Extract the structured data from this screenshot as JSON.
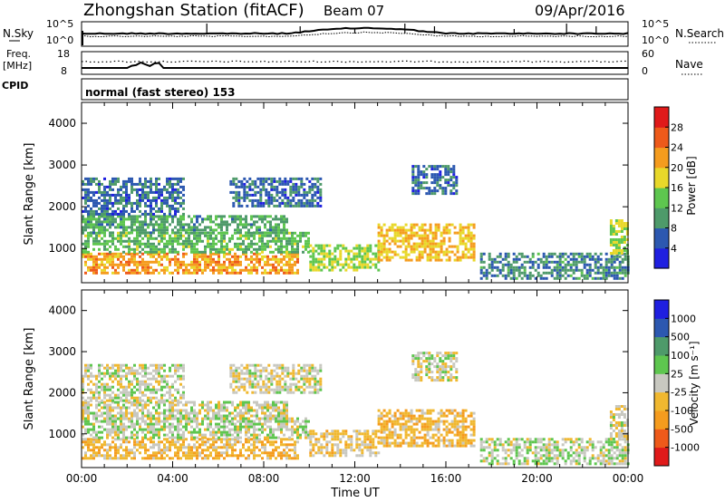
{
  "header": {
    "station": "Zhongshan Station (fitACF)",
    "beam": "Beam 07",
    "date": "09/Apr/2016"
  },
  "noise_panel": {
    "left_label": "N.Sky",
    "right_label": "N.Search",
    "left_ticks": [
      "10^5",
      "10^0"
    ],
    "right_ticks": [
      "10^5",
      "10^0"
    ]
  },
  "freq_panel": {
    "left_label_line1": "Freq.",
    "left_label_line2": "[MHz]",
    "right_label": "Nave",
    "left_ticks": [
      "18",
      "8"
    ],
    "right_ticks": [
      "60",
      "0"
    ]
  },
  "cpid": {
    "label": "CPID",
    "text": "normal (fast stereo) 153"
  },
  "colors": {
    "power_scale": [
      "#1f1fe0",
      "#2c58b0",
      "#4e9a6a",
      "#5ec64f",
      "#e8d82a",
      "#f59c1e",
      "#ee5a1a",
      "#e01a1a"
    ],
    "velocity_scale": [
      "#e01a1a",
      "#ee5a1a",
      "#f59c1e",
      "#f0b830",
      "#c8c8c0",
      "#5ec64f",
      "#4e9a6a",
      "#2c58b0",
      "#1f1fe0"
    ]
  },
  "chart_data": [
    {
      "type": "heatmap",
      "name": "power",
      "ylabel": "Slant Range [km]",
      "xlabel": "",
      "ylim": [
        180,
        4500
      ],
      "xlim_hours": [
        0,
        24
      ],
      "y_ticks": [
        "1000",
        "2000",
        "3000",
        "4000"
      ],
      "colorbar": {
        "label": "Power [dB]",
        "ticks": [
          "4",
          "8",
          "12",
          "16",
          "20",
          "24",
          "28"
        ],
        "range": [
          0,
          32
        ]
      },
      "regions": [
        {
          "t0": 0.0,
          "t1": 9.5,
          "r0": 420,
          "r1": 900,
          "value": 22
        },
        {
          "t0": 0.0,
          "t1": 10.0,
          "r0": 900,
          "r1": 1400,
          "value": 13
        },
        {
          "t0": 0.0,
          "t1": 9.0,
          "r0": 1400,
          "r1": 1800,
          "value": 11
        },
        {
          "t0": 0.0,
          "t1": 4.5,
          "r0": 1800,
          "r1": 2700,
          "value": 7
        },
        {
          "t0": 6.5,
          "t1": 10.5,
          "r0": 2000,
          "r1": 2700,
          "value": 7
        },
        {
          "t0": 10.0,
          "t1": 13.0,
          "r0": 500,
          "r1": 1100,
          "value": 16
        },
        {
          "t0": 13.0,
          "t1": 17.2,
          "r0": 700,
          "r1": 1600,
          "value": 20
        },
        {
          "t0": 14.5,
          "t1": 16.5,
          "r0": 2300,
          "r1": 3000,
          "value": 7
        },
        {
          "t0": 17.5,
          "t1": 24.0,
          "r0": 250,
          "r1": 900,
          "value": 9
        },
        {
          "t0": 23.2,
          "t1": 24.0,
          "r0": 900,
          "r1": 1700,
          "value": 16
        }
      ]
    },
    {
      "type": "heatmap",
      "name": "velocity",
      "ylabel": "Slant Range [km]",
      "xlabel": "Time UT",
      "ylim": [
        180,
        4500
      ],
      "xlim_hours": [
        0,
        24
      ],
      "x_ticks": [
        "00:00",
        "04:00",
        "08:00",
        "12:00",
        "16:00",
        "20:00",
        "00:00"
      ],
      "y_ticks": [
        "1000",
        "2000",
        "3000",
        "4000"
      ],
      "colorbar": {
        "label": "Velocity [m s⁻¹]",
        "ticks": [
          "-1000",
          "-500",
          "-100",
          "-25",
          "25",
          "100",
          "500",
          "1000"
        ],
        "range": [
          -1200,
          1200
        ]
      },
      "regions": [
        {
          "t0": 0.0,
          "t1": 9.5,
          "r0": 420,
          "r1": 900,
          "value": -300
        },
        {
          "t0": 0.0,
          "t1": 10.0,
          "r0": 900,
          "r1": 1400,
          "value": 60
        },
        {
          "t0": 0.0,
          "t1": 9.0,
          "r0": 1400,
          "r1": 1800,
          "value": 0
        },
        {
          "t0": 0.0,
          "t1": 4.5,
          "r0": 1800,
          "r1": 2700,
          "value": 0
        },
        {
          "t0": 6.5,
          "t1": 10.5,
          "r0": 2000,
          "r1": 2700,
          "value": -60
        },
        {
          "t0": 10.0,
          "t1": 13.0,
          "r0": 500,
          "r1": 1100,
          "value": -200
        },
        {
          "t0": 13.0,
          "t1": 17.2,
          "r0": 700,
          "r1": 1600,
          "value": -300
        },
        {
          "t0": 14.5,
          "t1": 16.5,
          "r0": 2300,
          "r1": 3000,
          "value": 0
        },
        {
          "t0": 17.5,
          "t1": 24.0,
          "r0": 250,
          "r1": 900,
          "value": 60
        },
        {
          "t0": 23.2,
          "t1": 24.0,
          "r0": 900,
          "r1": 1700,
          "value": -60
        }
      ]
    }
  ]
}
